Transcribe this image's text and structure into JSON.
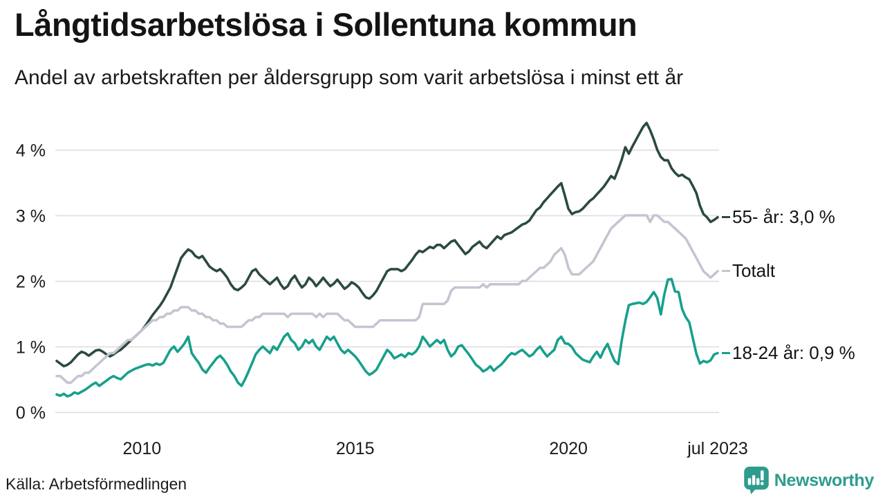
{
  "header": {
    "title": "Långtidsarbetslösa i Sollentuna kommun",
    "subtitle": "Andel av arbetskraften per åldersgrupp som varit arbetslösa i minst ett år"
  },
  "footer": {
    "source": "Källa: Arbetsförmedlingen",
    "brand": "Newsworthy",
    "brand_icon": "bar-chart-speech-bubble-icon"
  },
  "colors": {
    "text": "#141414",
    "grid": "#dcdcdc",
    "accent": "#2E9C8D",
    "series_55": "#2B4A42",
    "series_total": "#C6C4D2",
    "series_1824": "#17A08C"
  },
  "chart_data": {
    "type": "line",
    "title": "Långtidsarbetslösa i Sollentuna kommun",
    "subtitle": "Andel av arbetskraften per åldersgrupp som varit arbetslösa i minst ett år",
    "xlabel": "",
    "ylabel": "",
    "unit": "%",
    "frequency": "monthly",
    "x_start": 2008.0,
    "x_step_years": 0.0833333,
    "xlim": [
      2008.0,
      2023.5
    ],
    "ylim": [
      0,
      4.6
    ],
    "grid": "horizontal-only",
    "legend_position": "right-end-labels",
    "yticks": [
      {
        "value": 0,
        "label": "0 %"
      },
      {
        "value": 1,
        "label": "1 %"
      },
      {
        "value": 2,
        "label": "2 %"
      },
      {
        "value": 3,
        "label": "3 %"
      },
      {
        "value": 4,
        "label": "4 %"
      }
    ],
    "xticks": [
      {
        "value": 2010,
        "label": "2010"
      },
      {
        "value": 2015,
        "label": "2015"
      },
      {
        "value": 2020,
        "label": "2020"
      },
      {
        "value": 2023.5,
        "label": "jul 2023"
      }
    ],
    "series": [
      {
        "name": "55- år",
        "end_label": "55- år: 3,0 %",
        "last_value_label": "3,0 %",
        "color": "#2B4A42",
        "values": [
          0.78,
          0.74,
          0.7,
          0.72,
          0.76,
          0.82,
          0.88,
          0.92,
          0.9,
          0.86,
          0.9,
          0.94,
          0.95,
          0.92,
          0.88,
          0.85,
          0.88,
          0.92,
          0.95,
          1.0,
          1.05,
          1.1,
          1.15,
          1.2,
          1.25,
          1.32,
          1.4,
          1.48,
          1.55,
          1.62,
          1.7,
          1.8,
          1.9,
          2.05,
          2.2,
          2.35,
          2.42,
          2.48,
          2.45,
          2.38,
          2.35,
          2.38,
          2.3,
          2.22,
          2.18,
          2.15,
          2.18,
          2.12,
          2.05,
          1.95,
          1.88,
          1.86,
          1.9,
          1.95,
          2.05,
          2.15,
          2.18,
          2.1,
          2.05,
          2.0,
          1.95,
          2.0,
          2.05,
          1.95,
          1.88,
          1.92,
          2.02,
          2.08,
          1.98,
          1.9,
          1.95,
          2.05,
          2.0,
          1.92,
          1.98,
          2.05,
          1.98,
          1.92,
          1.96,
          2.02,
          1.95,
          1.88,
          1.92,
          1.98,
          1.95,
          1.9,
          1.82,
          1.75,
          1.73,
          1.78,
          1.85,
          1.95,
          2.05,
          2.15,
          2.18,
          2.18,
          2.18,
          2.15,
          2.18,
          2.25,
          2.32,
          2.4,
          2.46,
          2.44,
          2.48,
          2.52,
          2.5,
          2.55,
          2.55,
          2.5,
          2.55,
          2.6,
          2.62,
          2.55,
          2.48,
          2.41,
          2.45,
          2.52,
          2.56,
          2.6,
          2.53,
          2.5,
          2.56,
          2.62,
          2.68,
          2.64,
          2.7,
          2.72,
          2.74,
          2.78,
          2.82,
          2.86,
          2.88,
          2.92,
          3.0,
          3.08,
          3.12,
          3.2,
          3.26,
          3.32,
          3.38,
          3.44,
          3.49,
          3.3,
          3.1,
          3.02,
          3.05,
          3.06,
          3.1,
          3.16,
          3.22,
          3.26,
          3.32,
          3.38,
          3.44,
          3.52,
          3.6,
          3.56,
          3.7,
          3.85,
          4.04,
          3.94,
          4.05,
          4.15,
          4.25,
          4.35,
          4.41,
          4.3,
          4.16,
          4.0,
          3.89,
          3.84,
          3.84,
          3.72,
          3.65,
          3.6,
          3.62,
          3.58,
          3.55,
          3.45,
          3.34,
          3.15,
          3.02,
          2.97,
          2.9,
          2.93,
          2.97
        ]
      },
      {
        "name": "Totalt",
        "end_label": "Totalt",
        "last_value_label": "",
        "color": "#C6C4D2",
        "values": [
          0.55,
          0.55,
          0.5,
          0.45,
          0.45,
          0.5,
          0.55,
          0.55,
          0.6,
          0.6,
          0.65,
          0.7,
          0.75,
          0.8,
          0.85,
          0.9,
          0.9,
          0.95,
          1.0,
          1.05,
          1.1,
          1.1,
          1.15,
          1.2,
          1.25,
          1.3,
          1.35,
          1.4,
          1.4,
          1.45,
          1.45,
          1.5,
          1.5,
          1.55,
          1.55,
          1.6,
          1.6,
          1.6,
          1.55,
          1.55,
          1.5,
          1.5,
          1.45,
          1.45,
          1.4,
          1.4,
          1.35,
          1.35,
          1.3,
          1.3,
          1.3,
          1.3,
          1.3,
          1.35,
          1.4,
          1.4,
          1.45,
          1.45,
          1.5,
          1.5,
          1.5,
          1.5,
          1.5,
          1.5,
          1.5,
          1.45,
          1.5,
          1.5,
          1.5,
          1.5,
          1.5,
          1.5,
          1.5,
          1.45,
          1.5,
          1.45,
          1.5,
          1.5,
          1.5,
          1.5,
          1.45,
          1.4,
          1.4,
          1.35,
          1.3,
          1.3,
          1.3,
          1.3,
          1.3,
          1.3,
          1.35,
          1.4,
          1.4,
          1.4,
          1.4,
          1.4,
          1.4,
          1.4,
          1.4,
          1.4,
          1.4,
          1.4,
          1.45,
          1.65,
          1.65,
          1.65,
          1.65,
          1.65,
          1.65,
          1.65,
          1.7,
          1.85,
          1.9,
          1.9,
          1.9,
          1.9,
          1.9,
          1.9,
          1.9,
          1.9,
          1.95,
          1.9,
          1.95,
          1.95,
          1.95,
          1.95,
          1.95,
          1.95,
          1.95,
          1.95,
          1.95,
          2.0,
          2.0,
          2.05,
          2.1,
          2.15,
          2.2,
          2.2,
          2.25,
          2.3,
          2.4,
          2.45,
          2.5,
          2.4,
          2.2,
          2.1,
          2.1,
          2.1,
          2.15,
          2.2,
          2.25,
          2.3,
          2.4,
          2.5,
          2.6,
          2.7,
          2.8,
          2.85,
          2.9,
          2.95,
          3.0,
          3.0,
          3.0,
          3.0,
          3.0,
          3.0,
          3.0,
          2.9,
          3.0,
          3.0,
          2.95,
          2.9,
          2.9,
          2.85,
          2.8,
          2.75,
          2.7,
          2.65,
          2.55,
          2.45,
          2.35,
          2.25,
          2.15,
          2.1,
          2.05,
          2.1,
          2.15
        ]
      },
      {
        "name": "18-24 år",
        "end_label": "18-24 år: 0,9 %",
        "last_value_label": "0,9 %",
        "color": "#17A08C",
        "values": [
          0.27,
          0.25,
          0.28,
          0.24,
          0.26,
          0.3,
          0.28,
          0.31,
          0.34,
          0.38,
          0.42,
          0.45,
          0.4,
          0.44,
          0.48,
          0.52,
          0.55,
          0.52,
          0.5,
          0.55,
          0.6,
          0.63,
          0.66,
          0.68,
          0.7,
          0.72,
          0.73,
          0.71,
          0.74,
          0.72,
          0.75,
          0.85,
          0.95,
          1.0,
          0.92,
          0.98,
          1.05,
          1.15,
          0.9,
          0.82,
          0.75,
          0.65,
          0.6,
          0.68,
          0.75,
          0.82,
          0.86,
          0.8,
          0.72,
          0.62,
          0.55,
          0.45,
          0.4,
          0.5,
          0.62,
          0.75,
          0.88,
          0.95,
          1.0,
          0.95,
          0.9,
          1.0,
          0.95,
          1.05,
          1.15,
          1.2,
          1.1,
          1.05,
          0.95,
          1.0,
          1.1,
          1.05,
          1.1,
          1.0,
          0.95,
          1.05,
          1.15,
          1.1,
          1.15,
          1.05,
          0.95,
          0.9,
          0.95,
          0.9,
          0.85,
          0.78,
          0.7,
          0.62,
          0.57,
          0.6,
          0.65,
          0.75,
          0.85,
          0.95,
          0.9,
          0.82,
          0.85,
          0.88,
          0.84,
          0.9,
          0.88,
          0.92,
          1.0,
          1.15,
          1.08,
          1.0,
          1.05,
          1.1,
          1.05,
          1.1,
          0.95,
          0.85,
          0.9,
          1.0,
          1.02,
          0.95,
          0.88,
          0.8,
          0.72,
          0.68,
          0.62,
          0.65,
          0.7,
          0.63,
          0.68,
          0.72,
          0.78,
          0.85,
          0.9,
          0.88,
          0.92,
          0.95,
          0.9,
          0.85,
          0.88,
          0.95,
          1.0,
          0.92,
          0.85,
          0.9,
          0.95,
          1.1,
          1.15,
          1.05,
          1.04,
          0.99,
          0.9,
          0.85,
          0.8,
          0.78,
          0.76,
          0.85,
          0.92,
          0.83,
          0.95,
          1.04,
          0.9,
          0.78,
          0.73,
          1.09,
          1.39,
          1.63,
          1.65,
          1.66,
          1.67,
          1.65,
          1.68,
          1.75,
          1.83,
          1.74,
          1.49,
          1.8,
          2.02,
          2.03,
          1.84,
          1.83,
          1.57,
          1.45,
          1.37,
          1.13,
          0.89,
          0.74,
          0.78,
          0.76,
          0.79,
          0.88,
          0.9
        ]
      }
    ]
  }
}
